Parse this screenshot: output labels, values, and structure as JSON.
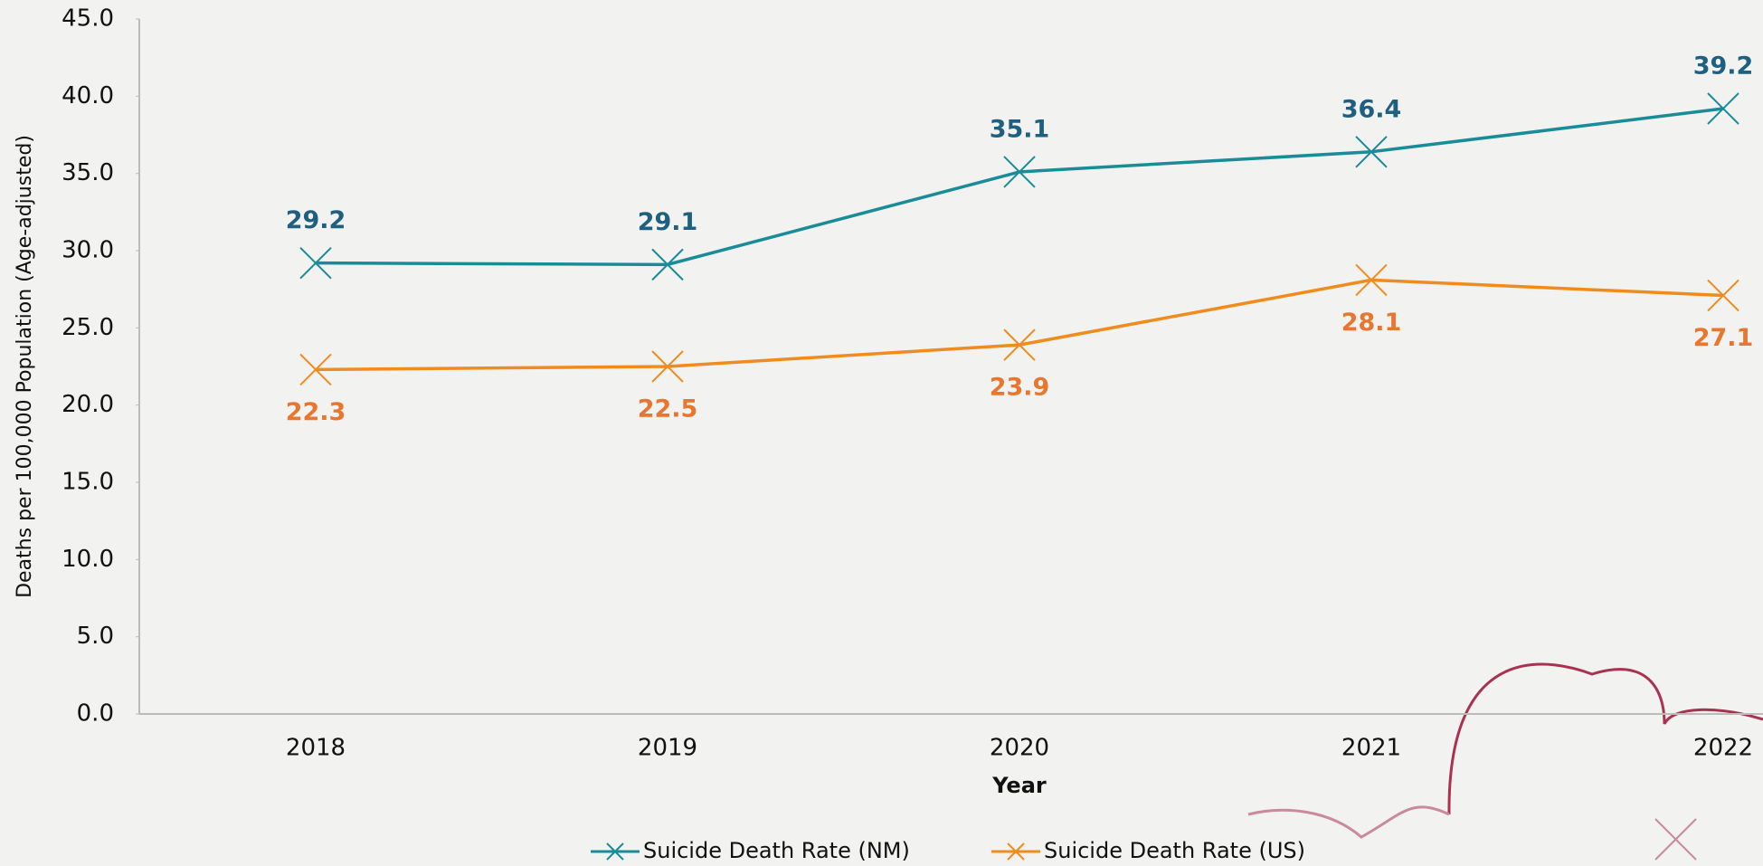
{
  "chart_data": {
    "type": "line",
    "x_label": "Year",
    "y_label": "Deaths per 100,000 Population (Age-adjusted)",
    "categories": [
      "2018",
      "2019",
      "2020",
      "2021",
      "2022"
    ],
    "series": [
      {
        "name": "Suicide Death Rate (NM)",
        "color": "#1a8c98",
        "label_color": "#1f5f80",
        "values": [
          29.2,
          29.1,
          35.1,
          36.4,
          39.2
        ]
      },
      {
        "name": "Suicide Death Rate (US)",
        "color": "#f08c1e",
        "label_color": "#e8762e",
        "values": [
          22.3,
          22.5,
          23.9,
          28.1,
          27.1
        ]
      }
    ],
    "ylim": [
      0,
      45
    ],
    "yticks": [
      {
        "value": 0,
        "label": "0.0"
      },
      {
        "value": 5,
        "label": "5.0"
      },
      {
        "value": 10,
        "label": "10.0"
      },
      {
        "value": 15,
        "label": "15.0"
      },
      {
        "value": 20,
        "label": "20.0"
      },
      {
        "value": 25,
        "label": "25.0"
      },
      {
        "value": 30,
        "label": "30.0"
      },
      {
        "value": 35,
        "label": "35.0"
      },
      {
        "value": 40,
        "label": "40.0"
      },
      {
        "value": 45,
        "label": "45.0"
      }
    ],
    "grid": false
  }
}
